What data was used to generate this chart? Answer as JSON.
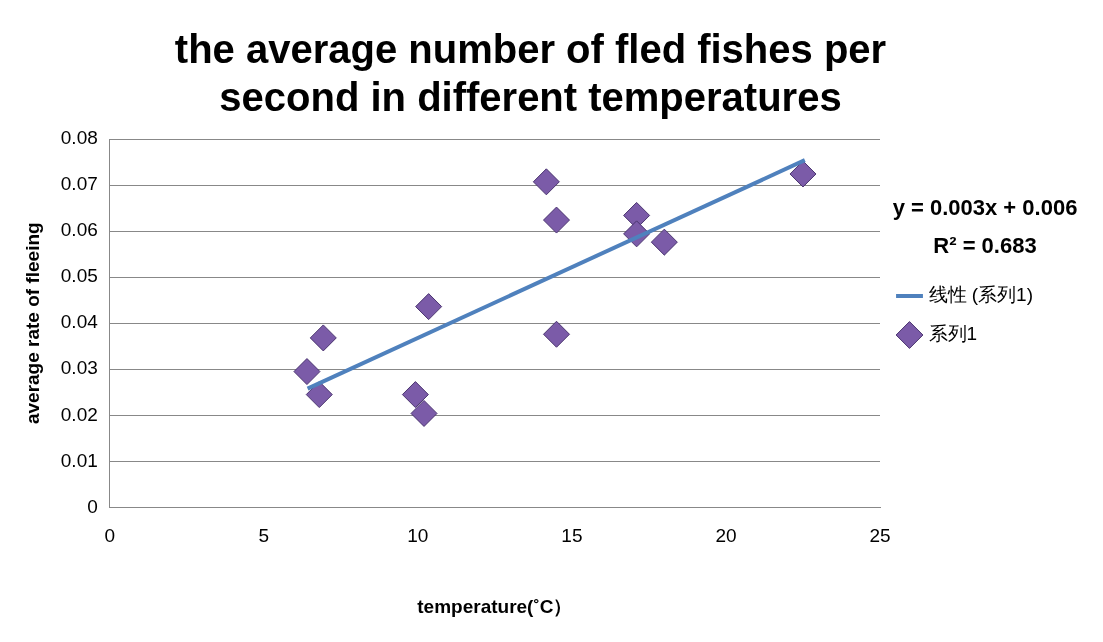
{
  "chart_data": {
    "type": "scatter",
    "title": "the average number of fled fishes per second in different temperatures",
    "xlabel": "temperature(˚C）",
    "ylabel": "average rate of fleeing",
    "xlim": [
      0,
      25
    ],
    "xticks": [
      0,
      5,
      10,
      15,
      20,
      25
    ],
    "ylim": [
      0,
      0.08
    ],
    "yticks": [
      0,
      0.01,
      0.02,
      0.03,
      0.04,
      0.05,
      0.06,
      0.07,
      0.08
    ],
    "grid": "y",
    "legend": "right",
    "marker": "diamond",
    "series": [
      {
        "name": "系列1",
        "color": "#7b5ba8",
        "x": [
          14.17,
          14.5,
          17.1,
          17.1,
          18.0,
          22.5,
          10.35,
          14.5,
          6.93,
          6.4,
          6.8,
          9.92,
          10.2
        ],
        "values": [
          0.0707,
          0.0624,
          0.0634,
          0.0594,
          0.0576,
          0.0724,
          0.0436,
          0.0376,
          0.0368,
          0.0295,
          0.0245,
          0.0245,
          0.0204
        ]
      },
      {
        "name": "线性 (系列1)",
        "type": "line",
        "marker": "none",
        "color": "#4f81bd",
        "x": [
          6.42,
          22.56
        ],
        "values": [
          0.0258,
          0.0754
        ]
      }
    ],
    "annotations": [
      "y = 0.003x + 0.006\nR² = 0.683"
    ]
  }
}
